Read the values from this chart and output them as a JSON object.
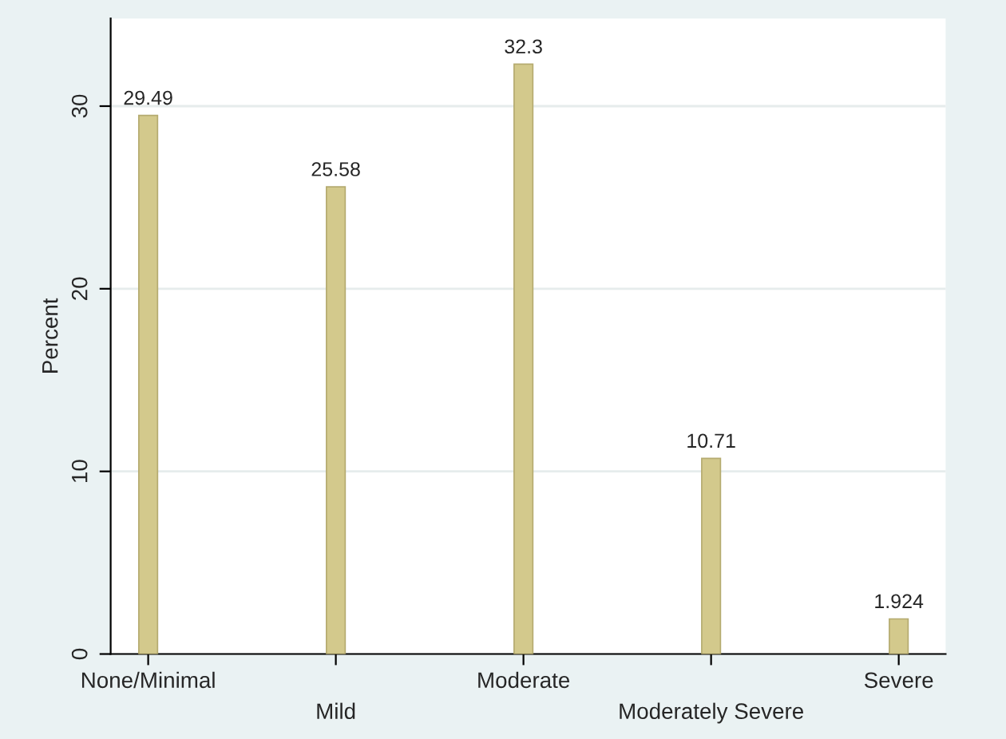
{
  "chart_data": {
    "type": "bar",
    "ylabel": "Percent",
    "categories": [
      "None/Minimal",
      "Mild",
      "Moderate",
      "Moderately Severe",
      "Severe"
    ],
    "values": [
      29.49,
      25.58,
      32.3,
      10.71,
      1.924
    ],
    "color": "#d3c98c",
    "ylim": [
      0,
      34.8
    ],
    "yticks": [
      0,
      10,
      20,
      30
    ],
    "grid": "y",
    "data_labels": true
  }
}
